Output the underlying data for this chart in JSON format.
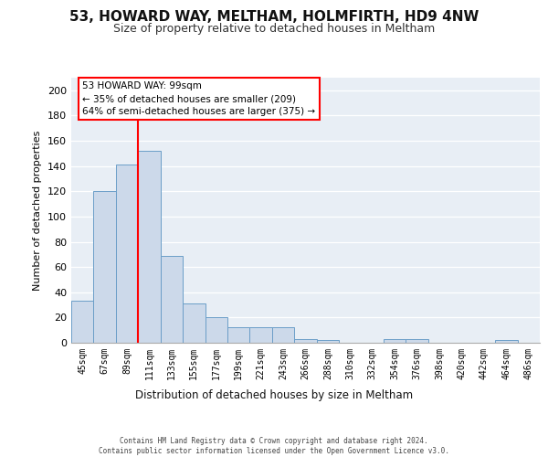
{
  "title1": "53, HOWARD WAY, MELTHAM, HOLMFIRTH, HD9 4NW",
  "title2": "Size of property relative to detached houses in Meltham",
  "xlabel": "Distribution of detached houses by size in Meltham",
  "ylabel": "Number of detached properties",
  "bar_color": "#ccd9ea",
  "bar_edge_color": "#6b9ec8",
  "background_color": "#e8eef5",
  "grid_color": "#ffffff",
  "categories": [
    "45sqm",
    "67sqm",
    "89sqm",
    "111sqm",
    "133sqm",
    "155sqm",
    "177sqm",
    "199sqm",
    "221sqm",
    "243sqm",
    "266sqm",
    "288sqm",
    "310sqm",
    "332sqm",
    "354sqm",
    "376sqm",
    "398sqm",
    "420sqm",
    "442sqm",
    "464sqm",
    "486sqm"
  ],
  "values": [
    33,
    120,
    141,
    152,
    69,
    31,
    20,
    12,
    12,
    12,
    3,
    2,
    0,
    0,
    3,
    3,
    0,
    0,
    0,
    2,
    0
  ],
  "ylim": [
    0,
    210
  ],
  "yticks": [
    0,
    20,
    40,
    60,
    80,
    100,
    120,
    140,
    160,
    180,
    200
  ],
  "red_line_x": 2.5,
  "property_sqm": 99,
  "pct_smaller": 35,
  "n_smaller": 209,
  "pct_larger_semi": 64,
  "n_larger_semi": 375,
  "footer_line1": "Contains HM Land Registry data © Crown copyright and database right 2024.",
  "footer_line2": "Contains public sector information licensed under the Open Government Licence v3.0."
}
